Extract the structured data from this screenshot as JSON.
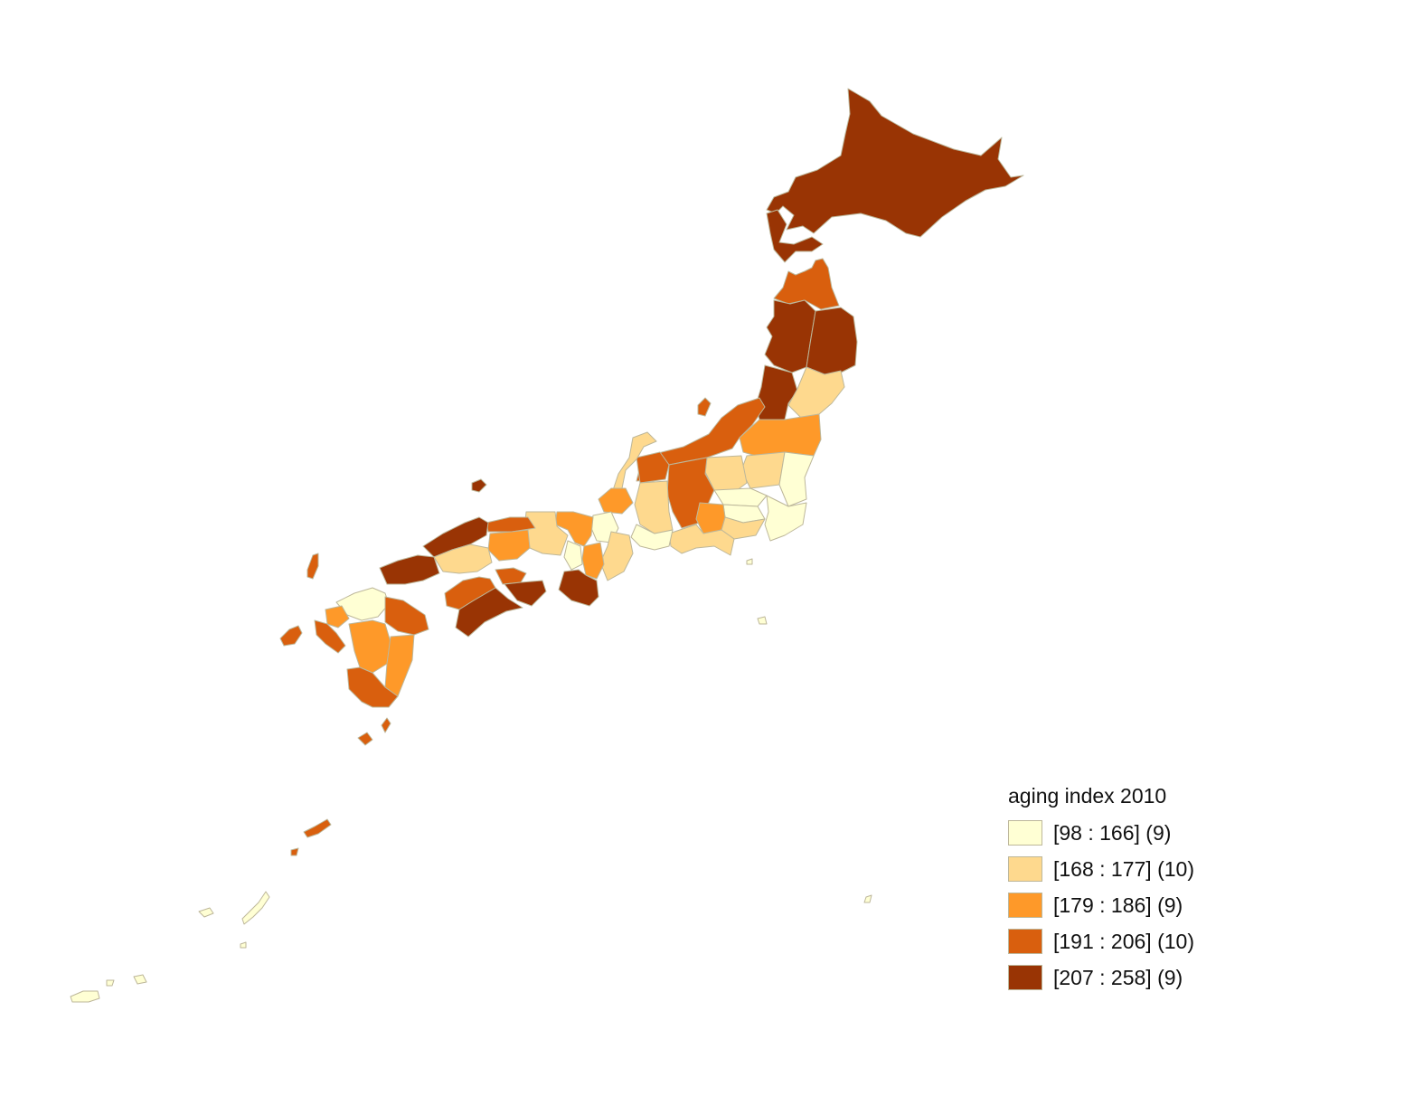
{
  "legend": {
    "title": "aging index 2010",
    "classes": [
      {
        "label": "[98 : 166] (9)",
        "color": "#ffffd4"
      },
      {
        "label": "[168 : 177] (10)",
        "color": "#fed98e"
      },
      {
        "label": "[179 : 186] (9)",
        "color": "#fe9929"
      },
      {
        "label": "[191 : 206] (10)",
        "color": "#d95f0e"
      },
      {
        "label": "[207 : 258] (9)",
        "color": "#993404"
      }
    ]
  },
  "style": {
    "border_color": "#bdb79a"
  }
}
